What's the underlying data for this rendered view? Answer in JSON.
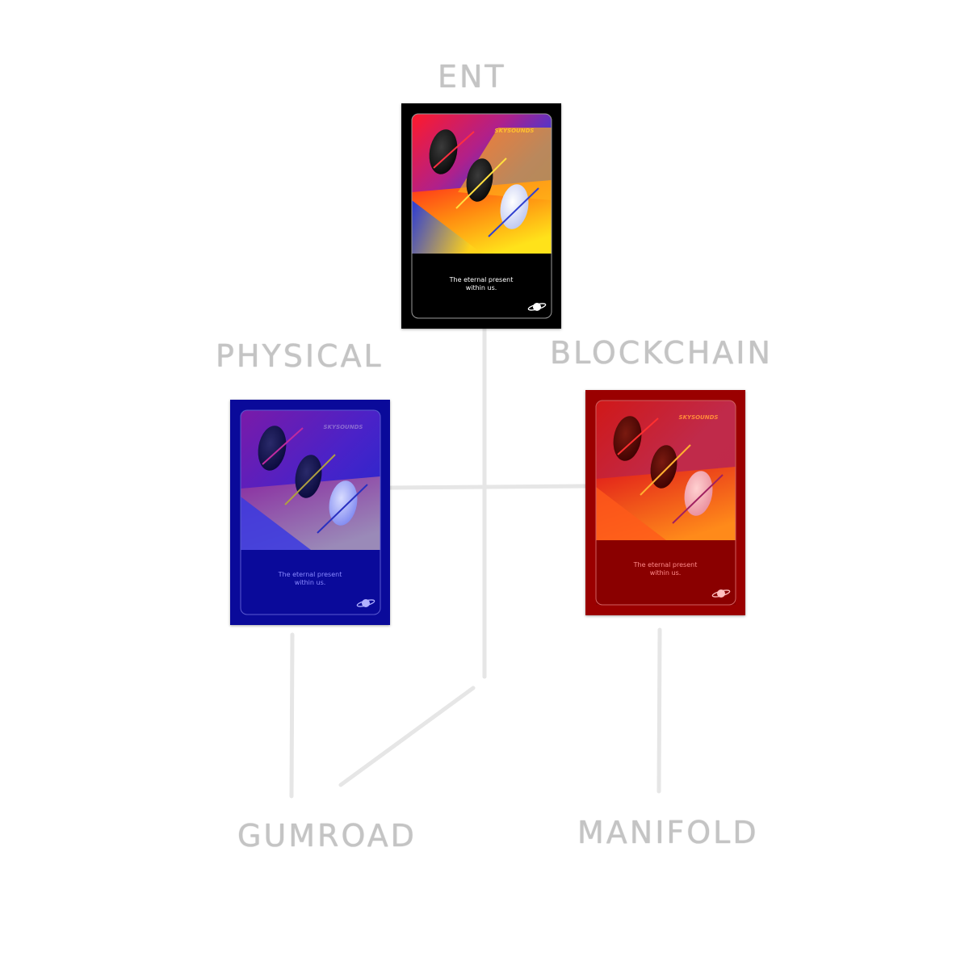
{
  "nodes": {
    "ent": {
      "label": "ENT"
    },
    "physical": {
      "label": "PHYSICAL"
    },
    "blockchain": {
      "label": "BLOCKCHAIN"
    },
    "gumroad": {
      "label": "GUMROAD"
    },
    "manifold": {
      "label": "MANIFOLD"
    }
  },
  "cards": {
    "ent": {
      "brand": "SKYSOUNDS",
      "caption_line1": "The eternal present",
      "caption_line2": "within us.",
      "frame_color": "#000000",
      "tint_color": "",
      "logo_icon": "planet-icon"
    },
    "physical": {
      "brand": "SKYSOUNDS",
      "caption_line1": "The eternal present",
      "caption_line2": "within us.",
      "frame_color": "#0a0a9a",
      "tint_color": "#1010a0",
      "logo_icon": "planet-icon"
    },
    "blockchain": {
      "brand": "SKYSOUNDS",
      "caption_line1": "The eternal present",
      "caption_line2": "within us.",
      "frame_color": "#9a0000",
      "tint_color": "#b00000",
      "logo_icon": "planet-icon"
    }
  }
}
